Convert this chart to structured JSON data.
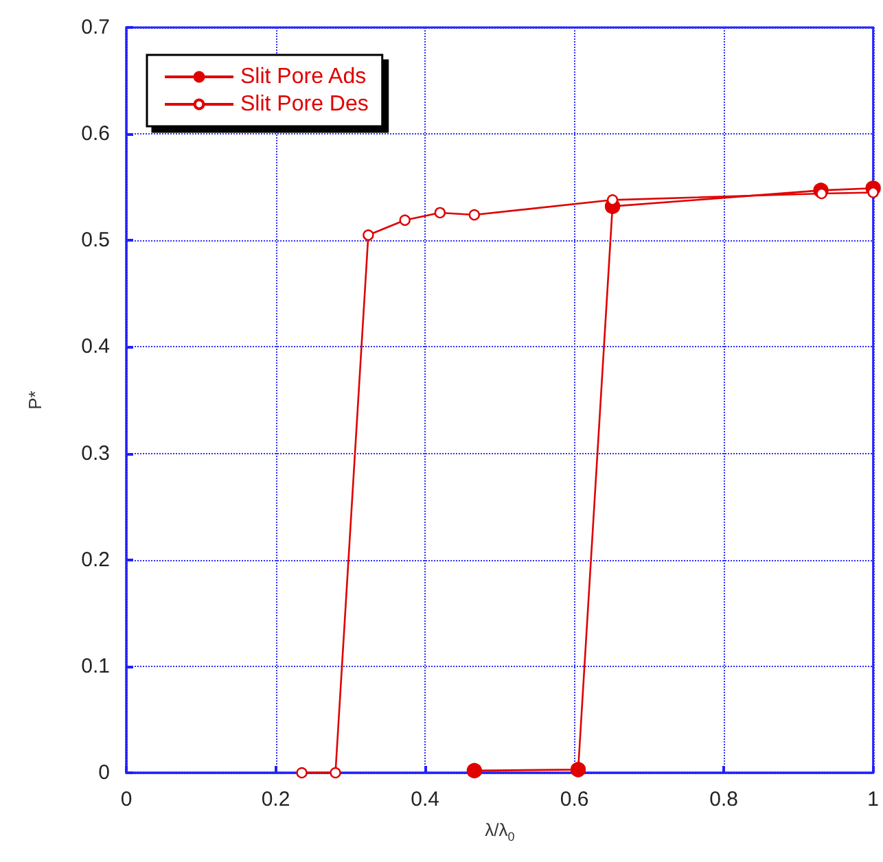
{
  "chart_data": {
    "type": "line",
    "xlabel": "λ/λ$_{0}$",
    "ylabel": "P*",
    "xlim": [
      0,
      1
    ],
    "xticks": [
      0,
      0.2,
      0.4,
      0.6,
      0.8,
      1
    ],
    "ylim": [
      0,
      0.7
    ],
    "yticks": [
      0,
      0.1,
      0.2,
      0.3,
      0.4,
      0.5,
      0.6,
      0.7
    ],
    "grid": true,
    "legend": "top left",
    "marker": "circle",
    "line_style": "solid",
    "series": [
      {
        "name": "Slit Pore Ads",
        "color": "#e00000",
        "x": [
          0.466,
          0.605,
          0.651,
          0.93,
          1
        ],
        "values": [
          0.002,
          0.003,
          0.532,
          0.547,
          0.549
        ]
      },
      {
        "name": "Slit Pore Des",
        "color": "#e00000",
        "x": [
          0.235,
          0.28,
          0.324,
          0.373,
          0.42,
          0.466,
          0.651,
          0.931,
          1
        ],
        "values": [
          0,
          0,
          0.505,
          0.519,
          0.526,
          0.524,
          0.538,
          0.544,
          0.545
        ]
      }
    ]
  }
}
